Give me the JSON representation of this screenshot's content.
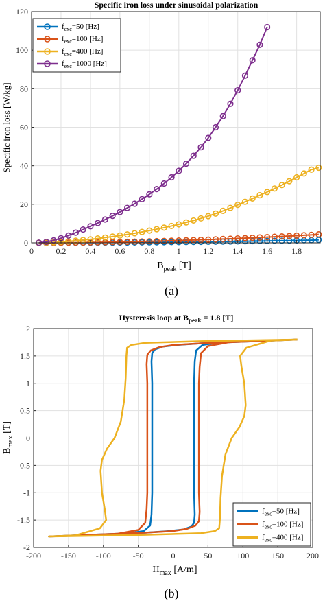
{
  "colors": {
    "blue": "#0072BD",
    "orange": "#D95319",
    "yellow": "#EDB120",
    "purple": "#7E2F8E",
    "grid": "#e1e1e1",
    "axis": "#262626"
  },
  "chart_data": [
    {
      "type": "line",
      "panel_label": "(a)",
      "title": "Specific iron loss under sinusoidal polarization",
      "xlabel": {
        "main": "B",
        "sub": "peak",
        "rest": " [T]"
      },
      "ylabel": "Specific iron loss [W/kg]",
      "xlim": [
        0,
        1.96
      ],
      "ylim": [
        0,
        120
      ],
      "xticks": [
        0,
        0.2,
        0.4,
        0.6,
        0.8,
        1,
        1.2,
        1.4,
        1.6,
        1.8
      ],
      "xtick_labels": [
        "0",
        "0.2",
        "0.4",
        "0.6",
        "0.8",
        "1",
        "1.2",
        "1.4",
        "1.6",
        "1.8"
      ],
      "yticks": [
        0,
        20,
        40,
        60,
        80,
        100,
        120
      ],
      "ytick_labels": [
        "0",
        "20",
        "40",
        "60",
        "80",
        "100",
        "120"
      ],
      "grid": true,
      "legend_position": "top-left",
      "series": [
        {
          "name": "f_exc=50 [Hz]",
          "legend": {
            "main": "f",
            "sub": "exc",
            "rest": "=50 [Hz]"
          },
          "color": "#0072BD",
          "x": [
            0.05,
            0.1,
            0.15,
            0.2,
            0.25,
            0.3,
            0.35,
            0.4,
            0.45,
            0.5,
            0.55,
            0.6,
            0.65,
            0.7,
            0.75,
            0.8,
            0.85,
            0.9,
            0.95,
            1.0,
            1.05,
            1.1,
            1.15,
            1.2,
            1.25,
            1.3,
            1.35,
            1.4,
            1.45,
            1.5,
            1.55,
            1.6,
            1.65,
            1.7,
            1.75,
            1.8,
            1.85,
            1.9,
            1.95
          ],
          "y": [
            0.0,
            0.01,
            0.02,
            0.03,
            0.04,
            0.06,
            0.07,
            0.09,
            0.11,
            0.13,
            0.15,
            0.17,
            0.2,
            0.22,
            0.25,
            0.28,
            0.31,
            0.34,
            0.38,
            0.41,
            0.45,
            0.49,
            0.53,
            0.57,
            0.62,
            0.67,
            0.71,
            0.77,
            0.82,
            0.87,
            0.93,
            0.99,
            1.05,
            1.12,
            1.18,
            1.25,
            1.32,
            1.4,
            1.5
          ]
        },
        {
          "name": "f_exc=100 [Hz]",
          "legend": {
            "main": "f",
            "sub": "exc",
            "rest": "=100 [Hz]"
          },
          "color": "#D95319",
          "x": [
            0.05,
            0.1,
            0.15,
            0.2,
            0.25,
            0.3,
            0.35,
            0.4,
            0.45,
            0.5,
            0.55,
            0.6,
            0.65,
            0.7,
            0.75,
            0.8,
            0.85,
            0.9,
            0.95,
            1.0,
            1.05,
            1.1,
            1.15,
            1.2,
            1.25,
            1.3,
            1.35,
            1.4,
            1.45,
            1.5,
            1.55,
            1.6,
            1.65,
            1.7,
            1.75,
            1.8,
            1.85,
            1.9,
            1.95
          ],
          "y": [
            0.01,
            0.02,
            0.04,
            0.06,
            0.09,
            0.13,
            0.17,
            0.22,
            0.27,
            0.33,
            0.39,
            0.46,
            0.54,
            0.62,
            0.7,
            0.79,
            0.89,
            0.99,
            1.1,
            1.21,
            1.33,
            1.45,
            1.58,
            1.71,
            1.85,
            2.0,
            2.15,
            2.3,
            2.46,
            2.63,
            2.8,
            2.98,
            3.16,
            3.35,
            3.54,
            3.74,
            3.95,
            4.16,
            4.4
          ]
        },
        {
          "name": "f_exc=400 [Hz]",
          "legend": {
            "main": "f",
            "sub": "exc",
            "rest": "=400 [Hz]"
          },
          "color": "#EDB120",
          "x": [
            0.05,
            0.1,
            0.15,
            0.2,
            0.25,
            0.3,
            0.35,
            0.4,
            0.45,
            0.5,
            0.55,
            0.6,
            0.65,
            0.7,
            0.75,
            0.8,
            0.85,
            0.9,
            0.95,
            1.0,
            1.05,
            1.1,
            1.15,
            1.2,
            1.25,
            1.3,
            1.35,
            1.4,
            1.45,
            1.5,
            1.55,
            1.6,
            1.65,
            1.7,
            1.75,
            1.8,
            1.85,
            1.9,
            1.95
          ],
          "y": [
            0.04,
            0.15,
            0.32,
            0.53,
            0.79,
            1.1,
            1.45,
            1.84,
            2.27,
            2.74,
            3.25,
            3.8,
            4.38,
            5.0,
            5.66,
            6.36,
            7.1,
            7.9,
            8.75,
            9.6,
            10.6,
            11.6,
            12.7,
            13.9,
            15.2,
            16.6,
            18.1,
            19.7,
            21.3,
            23.0,
            24.7,
            26.4,
            28.2,
            30.0,
            32.0,
            34.0,
            36.0,
            38.0,
            39.0
          ]
        },
        {
          "name": "f_exc=1000 [Hz]",
          "legend": {
            "main": "f",
            "sub": "exc",
            "rest": "=1000 [Hz]"
          },
          "color": "#7E2F8E",
          "x": [
            0.05,
            0.1,
            0.15,
            0.2,
            0.25,
            0.3,
            0.35,
            0.4,
            0.45,
            0.5,
            0.55,
            0.6,
            0.65,
            0.7,
            0.75,
            0.8,
            0.85,
            0.9,
            0.95,
            1.0,
            1.05,
            1.1,
            1.15,
            1.2,
            1.25,
            1.3,
            1.35,
            1.4,
            1.45,
            1.5,
            1.55,
            1.6
          ],
          "y": [
            0.1,
            0.5,
            1.3,
            2.4,
            3.8,
            5.3,
            6.9,
            8.6,
            10.3,
            12.1,
            14.0,
            16.0,
            18.1,
            20.3,
            22.7,
            25.2,
            27.9,
            30.8,
            34.0,
            37.4,
            41.1,
            45.2,
            49.6,
            54.5,
            60.0,
            65.8,
            72.2,
            79.2,
            86.8,
            94.8,
            102.8,
            112.0
          ]
        }
      ]
    },
    {
      "type": "line",
      "panel_label": "(b)",
      "title": {
        "pre": "Hysteresis loop at B",
        "sub": "peak",
        "post": " = 1.8 [T]"
      },
      "xlabel": {
        "main": "H",
        "sub": "max",
        "rest": " [A/m]"
      },
      "ylabel": {
        "main": "B",
        "sub": "max",
        "rest": " [T]"
      },
      "xlim": [
        -200,
        200
      ],
      "ylim": [
        -2,
        2
      ],
      "xticks": [
        -200,
        -150,
        -100,
        -50,
        0,
        50,
        100,
        150,
        200
      ],
      "xtick_labels": [
        "-200",
        "-150",
        "-100",
        "-50",
        "0",
        "50",
        "100",
        "150",
        "200"
      ],
      "yticks": [
        -2,
        -1.5,
        -1,
        -0.5,
        0,
        0.5,
        1,
        1.5,
        2
      ],
      "ytick_labels": [
        "-2",
        "-1.5",
        "-1",
        "-0.5",
        "0",
        "0.5",
        "1",
        "1.5",
        "2"
      ],
      "grid": true,
      "legend_position": "bottom-right",
      "series": [
        {
          "name": "f_exc=50 [Hz]",
          "legend": {
            "main": "f",
            "sub": "exc",
            "rest": "=50 [Hz]"
          },
          "color": "#0072BD",
          "x": [
            178,
            120,
            70,
            42,
            33,
            31,
            30,
            30,
            30,
            30,
            30,
            31,
            30,
            26,
            15,
            -5,
            -40,
            -120,
            -178,
            -120,
            -70,
            -42,
            -33,
            -31,
            -30,
            -30,
            -30,
            -30,
            -30,
            -31,
            -30,
            -26,
            -15,
            5,
            40,
            120,
            178
          ],
          "y": [
            1.8,
            1.78,
            1.75,
            1.7,
            1.6,
            1.4,
            1.0,
            0.5,
            0.0,
            -0.5,
            -1.0,
            -1.4,
            -1.55,
            -1.62,
            -1.67,
            -1.7,
            -1.73,
            -1.77,
            -1.8,
            -1.78,
            -1.75,
            -1.7,
            -1.6,
            -1.4,
            -1.0,
            -0.5,
            0.0,
            0.5,
            1.0,
            1.4,
            1.55,
            1.62,
            1.67,
            1.7,
            1.73,
            1.77,
            1.8
          ]
        },
        {
          "name": "f_exc=100 [Hz]",
          "legend": {
            "main": "f",
            "sub": "exc",
            "rest": "=100 [Hz]"
          },
          "color": "#D95319",
          "x": [
            178,
            125,
            80,
            50,
            40,
            38,
            37,
            37,
            37,
            37,
            37,
            38,
            37,
            32,
            20,
            0,
            -40,
            -120,
            -178,
            -125,
            -80,
            -50,
            -40,
            -38,
            -37,
            -37,
            -37,
            -37,
            -37,
            -38,
            -37,
            -32,
            -20,
            0,
            40,
            120,
            178
          ],
          "y": [
            1.8,
            1.78,
            1.75,
            1.68,
            1.55,
            1.3,
            1.0,
            0.5,
            0.0,
            -0.5,
            -1.0,
            -1.35,
            -1.52,
            -1.6,
            -1.66,
            -1.7,
            -1.73,
            -1.77,
            -1.8,
            -1.78,
            -1.75,
            -1.68,
            -1.55,
            -1.3,
            -1.0,
            -0.5,
            0.0,
            0.5,
            1.0,
            1.35,
            1.52,
            1.6,
            1.66,
            1.7,
            1.73,
            1.77,
            1.8
          ]
        },
        {
          "name": "f_exc=400 [Hz]",
          "legend": {
            "main": "f",
            "sub": "exc",
            "rest": "=400 [Hz]"
          },
          "color": "#EDB120",
          "x": [
            178,
            140,
            105,
            96,
            98,
            102,
            104,
            102,
            95,
            84,
            75,
            70,
            68,
            67,
            66,
            60,
            40,
            -40,
            -178,
            -140,
            -105,
            -96,
            -98,
            -102,
            -104,
            -102,
            -95,
            -84,
            -75,
            -70,
            -68,
            -67,
            -66,
            -60,
            -40,
            40,
            178
          ],
          "y": [
            1.8,
            1.78,
            1.65,
            1.5,
            1.3,
            1.0,
            0.6,
            0.4,
            0.2,
            0.0,
            -0.3,
            -0.7,
            -1.1,
            -1.5,
            -1.65,
            -1.7,
            -1.74,
            -1.77,
            -1.8,
            -1.78,
            -1.65,
            -1.5,
            -1.3,
            -1.0,
            -0.6,
            -0.4,
            -0.2,
            0.0,
            0.3,
            0.7,
            1.1,
            1.5,
            1.65,
            1.7,
            1.74,
            1.77,
            1.8
          ]
        }
      ]
    }
  ]
}
